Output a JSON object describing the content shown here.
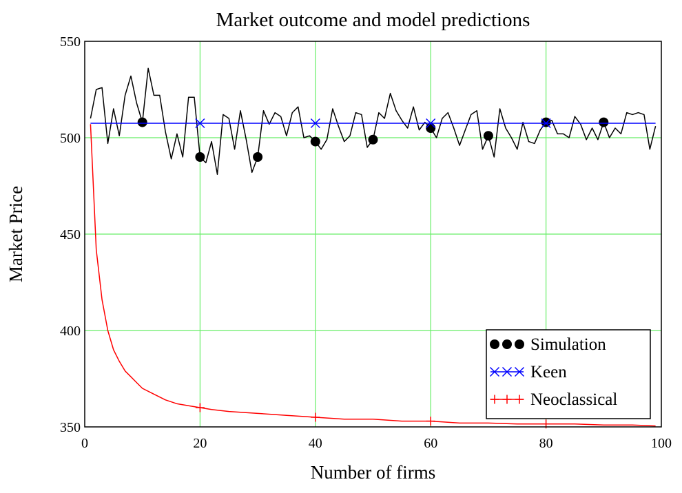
{
  "chart_data": {
    "type": "line",
    "title": "Market outcome and model predictions",
    "xlabel": "Number of firms",
    "ylabel": "Market Price",
    "xlim": [
      0,
      100
    ],
    "ylim": [
      350,
      550
    ],
    "xticks": [
      0,
      20,
      40,
      60,
      80,
      100
    ],
    "yticks": [
      350,
      400,
      450,
      500,
      550
    ],
    "grid": true,
    "grid_color": "#66ee66",
    "legend_position": "bottom-right",
    "series": [
      {
        "name": "Simulation",
        "color": "#000000",
        "marker": "circle",
        "x": [
          1,
          2,
          3,
          4,
          5,
          6,
          7,
          8,
          9,
          10,
          11,
          12,
          13,
          14,
          15,
          16,
          17,
          18,
          19,
          20,
          21,
          22,
          23,
          24,
          25,
          26,
          27,
          28,
          29,
          30,
          31,
          32,
          33,
          34,
          35,
          36,
          37,
          38,
          39,
          40,
          41,
          42,
          43,
          44,
          45,
          46,
          47,
          48,
          49,
          50,
          51,
          52,
          53,
          54,
          55,
          56,
          57,
          58,
          59,
          60,
          61,
          62,
          63,
          64,
          65,
          66,
          67,
          68,
          69,
          70,
          71,
          72,
          73,
          74,
          75,
          76,
          77,
          78,
          79,
          80,
          81,
          82,
          83,
          84,
          85,
          86,
          87,
          88,
          89,
          90,
          91,
          92,
          93,
          94,
          95,
          96,
          97,
          98,
          99
        ],
        "y": [
          510,
          525,
          526,
          497,
          515,
          501,
          522,
          532,
          518,
          508,
          536,
          522,
          522,
          503,
          489,
          502,
          490,
          521,
          521,
          490,
          487,
          498,
          481,
          512,
          510,
          494,
          514,
          499,
          482,
          490,
          514,
          507,
          513,
          511,
          501,
          513,
          516,
          500,
          501,
          498,
          494,
          499,
          515,
          506,
          498,
          501,
          513,
          512,
          495,
          499,
          513,
          510,
          523,
          514,
          509,
          505,
          516,
          504,
          508,
          505,
          500,
          510,
          513,
          505,
          496,
          504,
          512,
          514,
          494,
          501,
          490,
          515,
          505,
          500,
          494,
          508,
          498,
          497,
          504,
          508,
          509,
          502,
          502,
          500,
          511,
          507,
          499,
          505,
          499,
          508,
          500,
          505,
          502,
          513,
          512,
          513,
          512,
          494,
          506
        ],
        "marker_x": [
          10,
          20,
          30,
          40,
          50,
          60,
          70,
          80,
          90
        ],
        "marker_y": [
          508,
          490,
          490,
          498,
          499,
          505,
          501,
          508,
          508
        ]
      },
      {
        "name": "Keen",
        "color": "#0000ff",
        "marker": "x",
        "x": [
          1,
          99
        ],
        "y": [
          507.5,
          507.5
        ],
        "marker_x": [
          20,
          40,
          60,
          80
        ],
        "marker_y": [
          507.5,
          507.5,
          507.5,
          507.5
        ]
      },
      {
        "name": "Neoclassical",
        "color": "#ff0000",
        "marker": "plus",
        "x": [
          1,
          2,
          3,
          4,
          5,
          6,
          7,
          8,
          9,
          10,
          12,
          14,
          16,
          18,
          20,
          22,
          25,
          30,
          35,
          40,
          45,
          50,
          55,
          60,
          65,
          70,
          75,
          80,
          85,
          90,
          95,
          99
        ],
        "y": [
          507,
          442,
          416,
          400,
          390,
          384,
          379,
          376,
          373,
          370,
          367,
          364,
          362,
          361,
          360,
          359,
          358,
          357,
          356,
          355,
          354,
          354,
          353,
          353,
          352,
          352,
          351.5,
          351.5,
          351.5,
          351,
          351,
          350.5
        ],
        "marker_x": [
          20,
          40,
          60,
          80
        ],
        "marker_y": [
          360,
          355,
          353,
          351.5
        ]
      }
    ]
  }
}
